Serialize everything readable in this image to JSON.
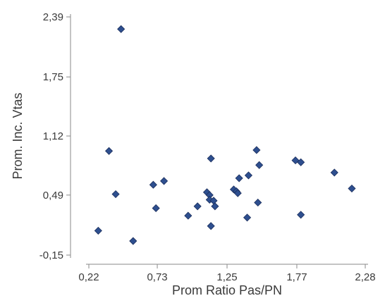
{
  "chart_data": {
    "type": "scatter",
    "title": "",
    "xlabel": "Prom Ratio Pas/PN",
    "ylabel": "Prom. Inc.  Vtas",
    "xlim": [
      0.22,
      2.28
    ],
    "ylim": [
      -0.15,
      2.39
    ],
    "x_ticks": [
      0.22,
      0.73,
      1.25,
      1.77,
      2.28
    ],
    "x_tick_labels": [
      "0,22",
      "0,73",
      "1,25",
      "1,77",
      "2,28"
    ],
    "y_ticks": [
      -0.15,
      0.49,
      1.12,
      1.75,
      2.39
    ],
    "y_tick_labels": [
      "-0,15",
      "0,49",
      "1,12",
      "1,75",
      "2,39"
    ],
    "grid": false,
    "marker": "diamond",
    "marker_color": "#2e4f8f",
    "marker_edge_color": "#1c2f5c",
    "points": [
      {
        "x": 0.46,
        "y": 2.26
      },
      {
        "x": 0.37,
        "y": 0.96
      },
      {
        "x": 0.42,
        "y": 0.5
      },
      {
        "x": 0.29,
        "y": 0.11
      },
      {
        "x": 0.55,
        "y": 0.0
      },
      {
        "x": 0.7,
        "y": 0.6
      },
      {
        "x": 0.72,
        "y": 0.35
      },
      {
        "x": 0.78,
        "y": 0.64
      },
      {
        "x": 0.96,
        "y": 0.27
      },
      {
        "x": 1.03,
        "y": 0.37
      },
      {
        "x": 1.1,
        "y": 0.52
      },
      {
        "x": 1.12,
        "y": 0.49
      },
      {
        "x": 1.12,
        "y": 0.44
      },
      {
        "x": 1.13,
        "y": 0.16
      },
      {
        "x": 1.13,
        "y": 0.88
      },
      {
        "x": 1.15,
        "y": 0.43
      },
      {
        "x": 1.16,
        "y": 0.37
      },
      {
        "x": 1.3,
        "y": 0.55
      },
      {
        "x": 1.32,
        "y": 0.53
      },
      {
        "x": 1.33,
        "y": 0.51
      },
      {
        "x": 1.34,
        "y": 0.67
      },
      {
        "x": 1.41,
        "y": 0.7
      },
      {
        "x": 1.4,
        "y": 0.25
      },
      {
        "x": 1.47,
        "y": 0.97
      },
      {
        "x": 1.49,
        "y": 0.81
      },
      {
        "x": 1.48,
        "y": 0.41
      },
      {
        "x": 1.76,
        "y": 0.86
      },
      {
        "x": 1.8,
        "y": 0.84
      },
      {
        "x": 1.8,
        "y": 0.28
      },
      {
        "x": 2.05,
        "y": 0.73
      },
      {
        "x": 2.18,
        "y": 0.56
      }
    ]
  }
}
